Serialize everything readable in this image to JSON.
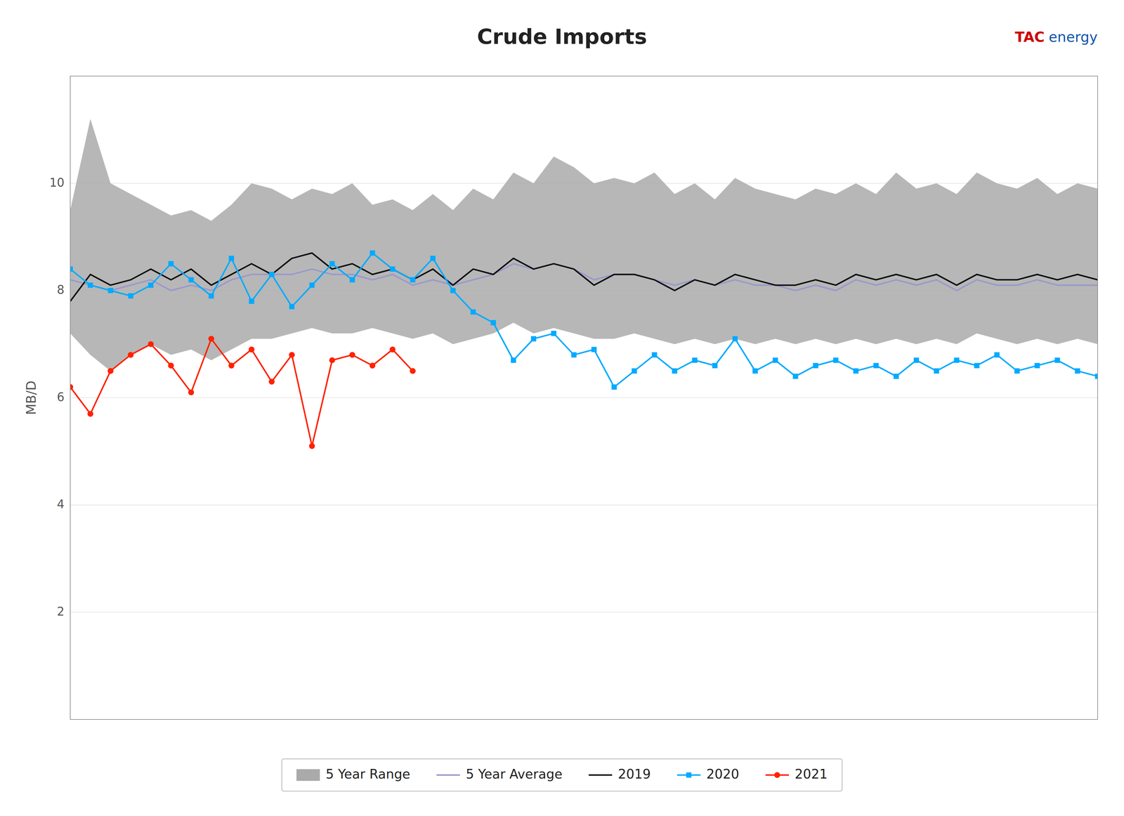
{
  "chart_data": {
    "type": "line",
    "title": "Crude Imports",
    "annotations": [
      "TAC",
      "energy"
    ],
    "y_label": "MB/D",
    "categories": [
      null,
      null,
      null,
      null,
      null,
      null,
      null,
      null,
      null,
      null,
      null,
      null,
      null,
      null,
      null,
      null,
      null,
      null,
      null,
      null,
      null,
      null,
      null,
      null,
      null,
      null,
      null,
      null,
      null,
      null,
      null,
      null,
      null,
      null,
      null,
      null,
      null,
      null,
      null,
      null,
      null,
      null,
      null,
      null,
      null,
      null,
      null,
      null,
      null,
      null,
      null,
      null
    ],
    "ylim": [
      0,
      12
    ],
    "yticks": [
      2,
      4,
      6,
      8,
      10
    ],
    "grid": true,
    "legend": "bottom",
    "tick_labels": "y",
    "series": [
      {
        "name": "5 Year Range",
        "type": "range",
        "color": "#aaaaaa",
        "lower": [
          7.2,
          6.8,
          6.5,
          6.8,
          7.0,
          6.8,
          6.9,
          6.7,
          6.9,
          7.1,
          7.1,
          7.2,
          7.3,
          7.2,
          7.2,
          7.3,
          7.2,
          7.1,
          7.2,
          7.0,
          7.1,
          7.2,
          7.4,
          7.2,
          7.3,
          7.2,
          7.1,
          7.1,
          7.2,
          7.1,
          7.0,
          7.1,
          7.0,
          7.1,
          7.0,
          7.1,
          7.0,
          7.1,
          7.0,
          7.1,
          7.0,
          7.1,
          7.0,
          7.1,
          7.0,
          7.2,
          7.1,
          7.0,
          7.1,
          7.0,
          7.1,
          7.0
        ],
        "upper": [
          9.5,
          11.2,
          10.0,
          9.8,
          9.6,
          9.4,
          9.5,
          9.3,
          9.6,
          10.0,
          9.9,
          9.7,
          9.9,
          9.8,
          10.0,
          9.6,
          9.7,
          9.5,
          9.8,
          9.5,
          9.9,
          9.7,
          10.2,
          10.0,
          10.5,
          10.3,
          10.0,
          10.1,
          10.0,
          10.2,
          9.8,
          10.0,
          9.7,
          10.1,
          9.9,
          9.8,
          9.7,
          9.9,
          9.8,
          10.0,
          9.8,
          10.2,
          9.9,
          10.0,
          9.8,
          10.2,
          10.0,
          9.9,
          10.1,
          9.8,
          10.0,
          9.9
        ]
      },
      {
        "name": "5 Year Average",
        "type": "line",
        "color": "#9999cc",
        "values": [
          8.2,
          8.1,
          8.0,
          8.1,
          8.2,
          8.0,
          8.1,
          8.0,
          8.2,
          8.3,
          8.3,
          8.3,
          8.4,
          8.3,
          8.3,
          8.2,
          8.3,
          8.1,
          8.2,
          8.1,
          8.2,
          8.3,
          8.5,
          8.4,
          8.5,
          8.4,
          8.2,
          8.3,
          8.3,
          8.2,
          8.1,
          8.2,
          8.1,
          8.2,
          8.1,
          8.1,
          8.0,
          8.1,
          8.0,
          8.2,
          8.1,
          8.2,
          8.1,
          8.2,
          8.0,
          8.2,
          8.1,
          8.1,
          8.2,
          8.1,
          8.1,
          8.1
        ]
      },
      {
        "name": "2019",
        "type": "line",
        "color": "#111111",
        "values": [
          7.8,
          8.3,
          8.1,
          8.2,
          8.4,
          8.2,
          8.4,
          8.1,
          8.3,
          8.5,
          8.3,
          8.6,
          8.7,
          8.4,
          8.5,
          8.3,
          8.4,
          8.2,
          8.4,
          8.1,
          8.4,
          8.3,
          8.6,
          8.4,
          8.5,
          8.4,
          8.1,
          8.3,
          8.3,
          8.2,
          8.0,
          8.2,
          8.1,
          8.3,
          8.2,
          8.1,
          8.1,
          8.2,
          8.1,
          8.3,
          8.2,
          8.3,
          8.2,
          8.3,
          8.1,
          8.3,
          8.2,
          8.2,
          8.3,
          8.2,
          8.3,
          8.2
        ]
      },
      {
        "name": "2020",
        "type": "line",
        "color": "#00aaff",
        "marker": "square",
        "values": [
          8.4,
          8.1,
          8.0,
          7.9,
          8.1,
          8.5,
          8.2,
          7.9,
          8.6,
          7.8,
          8.3,
          7.7,
          8.1,
          8.5,
          8.2,
          8.7,
          8.4,
          8.2,
          8.6,
          8.0,
          7.6,
          7.4,
          6.7,
          7.1,
          7.2,
          6.8,
          6.9,
          6.2,
          6.5,
          6.8,
          6.5,
          6.7,
          6.6,
          7.1,
          6.5,
          6.7,
          6.4,
          6.6,
          6.7,
          6.5,
          6.6,
          6.4,
          6.7,
          6.5,
          6.7,
          6.6,
          6.8,
          6.5,
          6.6,
          6.7,
          6.5,
          6.4
        ]
      },
      {
        "name": "2021",
        "type": "line",
        "color": "#ff2200",
        "marker": "circle",
        "values": [
          6.2,
          5.7,
          6.5,
          6.8,
          7.0,
          6.6,
          6.1,
          7.1,
          6.6,
          6.9,
          6.3,
          6.8,
          5.1,
          6.7,
          6.8,
          6.6,
          6.9,
          6.5,
          null,
          null,
          null,
          null,
          null,
          null,
          null,
          null,
          null,
          null,
          null,
          null,
          null,
          null,
          null,
          null,
          null,
          null,
          null,
          null,
          null,
          null,
          null,
          null,
          null,
          null,
          null,
          null,
          null,
          null,
          null,
          null,
          null,
          null
        ]
      }
    ]
  }
}
